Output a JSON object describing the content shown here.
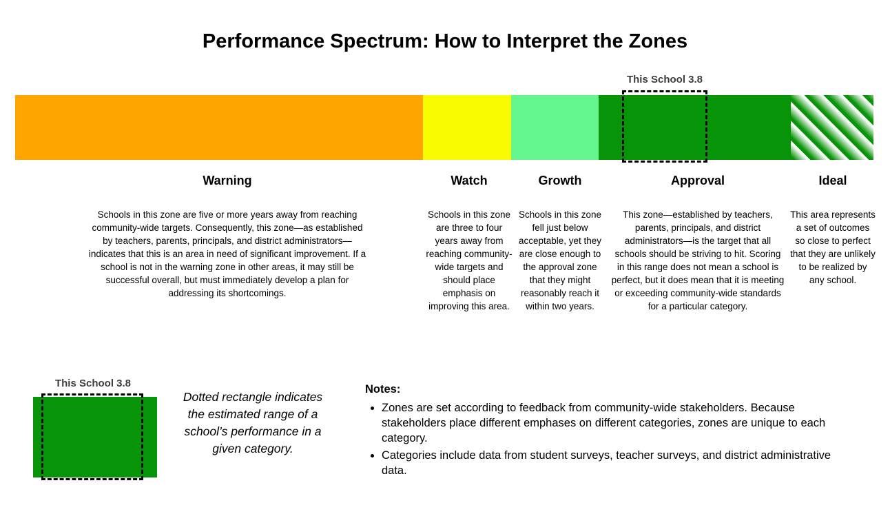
{
  "title": "Performance Spectrum: How to Interpret the Zones",
  "marker": {
    "label": "This School 3.8"
  },
  "zones": [
    {
      "name": "Warning",
      "color": "#FFA500",
      "description": "Schools in this zone are five or more years away from reaching community-wide targets. Consequently, this zone—as established by teachers, parents, principals, and district administrators—indicates that this is an area in need of significant improvement. If a school is not in the warning zone in other areas, it may still be successful overall, but must immediately develop a plan for addressing its shortcomings."
    },
    {
      "name": "Watch",
      "color": "#F9FB00",
      "description": "Schools in this zone are three to four years away from reaching community-wide targets and should place emphasis on improving this area."
    },
    {
      "name": "Growth",
      "color": "#64F58C",
      "description": "Schools in this zone fell just below acceptable, yet they are close enough to the approval zone that they might reasonably reach it within two years."
    },
    {
      "name": "Approval",
      "color": "#089408",
      "description": "This zone—established by teachers, parents, principals, and district administrators—is the target that all schools should be striving to hit. Scoring in this range does not mean a school is perfect, but it does mean that it is meeting or exceeding community-wide standards for a particular category."
    },
    {
      "name": "Ideal",
      "color": "#089408",
      "style": "striped",
      "description": "This area represents a set of outcomes so close to perfect that they are unlikely to be realized by any school."
    }
  ],
  "legend": {
    "marker_label": "This School 3.8",
    "swatch_color": "#089408",
    "caption": "Dotted rectangle indicates the estimated range of a school’s performance in a given category."
  },
  "notes": {
    "heading": "Notes:",
    "items": [
      "Zones are set according to feedback from community-wide stakeholders. Because stakeholders place different emphases on different categories, zones are unique to each category.",
      "Categories include data from student surveys, teacher surveys, and district administrative data."
    ]
  }
}
